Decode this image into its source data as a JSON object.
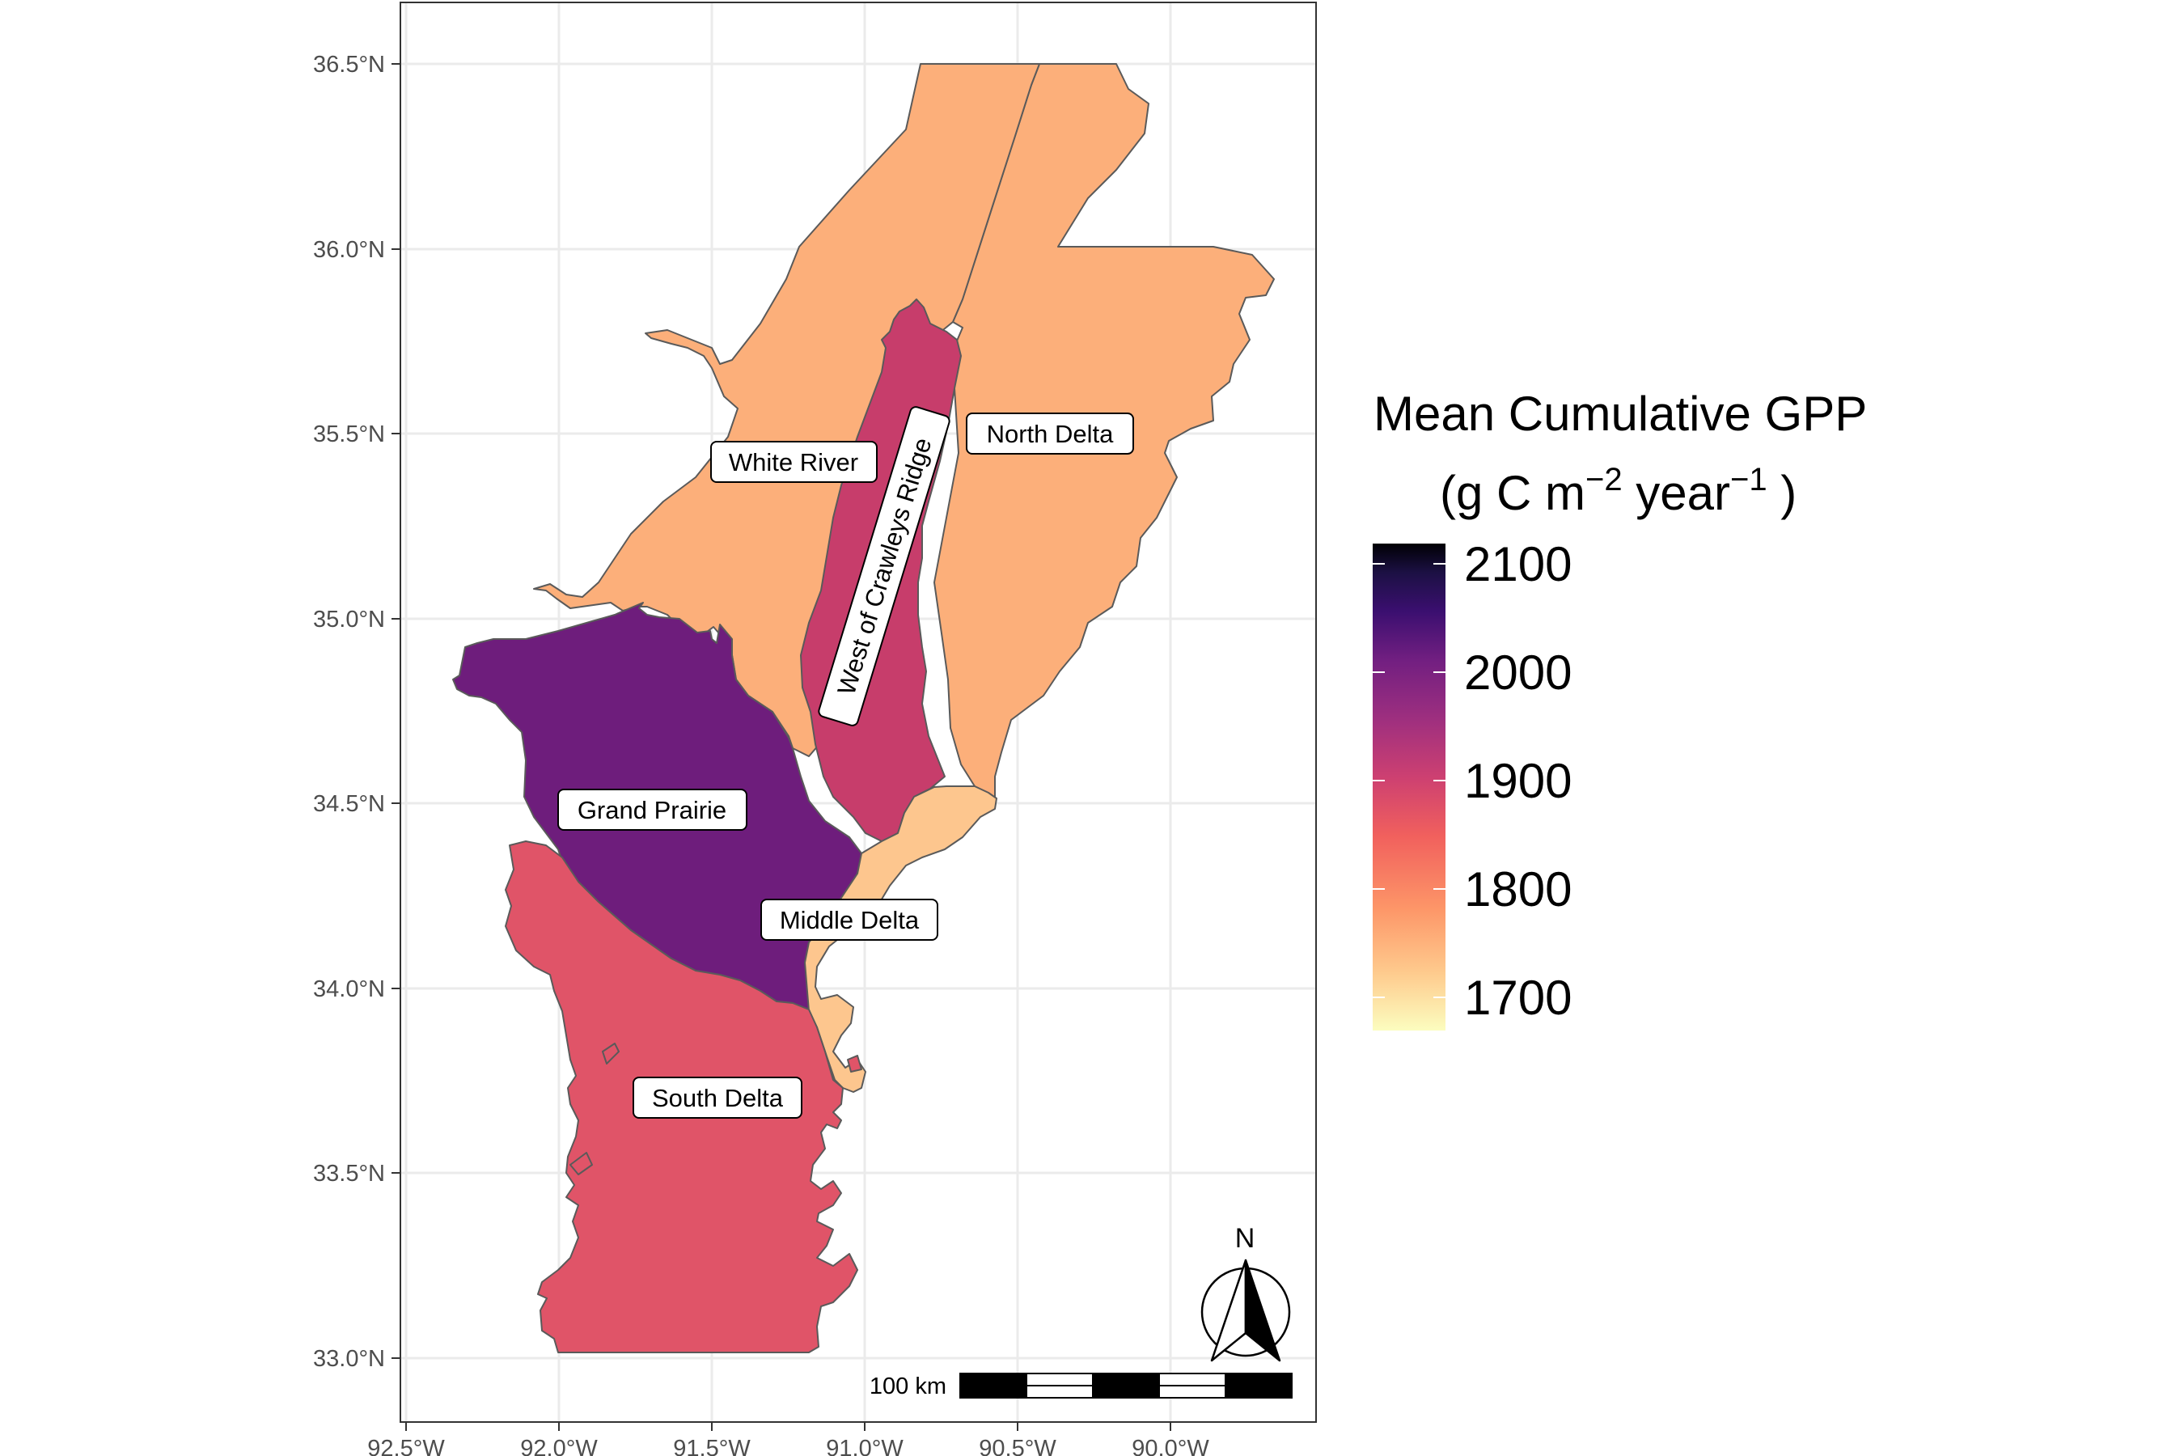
{
  "map": {
    "axes": {
      "y_ticks": [
        "36.5°N",
        "36.0°N",
        "35.5°N",
        "35.0°N",
        "34.5°N",
        "34.0°N",
        "33.5°N",
        "33.0°N"
      ],
      "x_ticks": [
        "92.5°W",
        "92.0°W",
        "91.5°W",
        "91.0°W",
        "90.5°W",
        "90.0°W"
      ],
      "grid": true
    },
    "regions": [
      {
        "name": "White River",
        "value": 1730,
        "color": "#fcaf7a"
      },
      {
        "name": "North Delta",
        "value": 1730,
        "color": "#fcaf7a"
      },
      {
        "name": "West of Crawleys Ridge",
        "value": 1895,
        "color": "#c73d6b"
      },
      {
        "name": "Grand Prairie",
        "value": 1985,
        "color": "#6e1d7c"
      },
      {
        "name": "Middle Delta",
        "value": 1700,
        "color": "#fdc68e"
      },
      {
        "name": "South Delta",
        "value": 1830,
        "color": "#e05468"
      }
    ],
    "legend": {
      "title_line1": "Mean Cumulative GPP",
      "title_g": "(g C m",
      "title_exp1": "−2",
      "title_year": " year",
      "title_exp2": "−1",
      "title_close": " )",
      "ticks": [
        "2100",
        "2000",
        "1900",
        "1800",
        "1700"
      ],
      "range": [
        1680,
        2110
      ],
      "colormap": "magma (reversed)"
    },
    "scale_bar": {
      "label": "100 km"
    },
    "north_arrow": {
      "label": "N"
    }
  }
}
